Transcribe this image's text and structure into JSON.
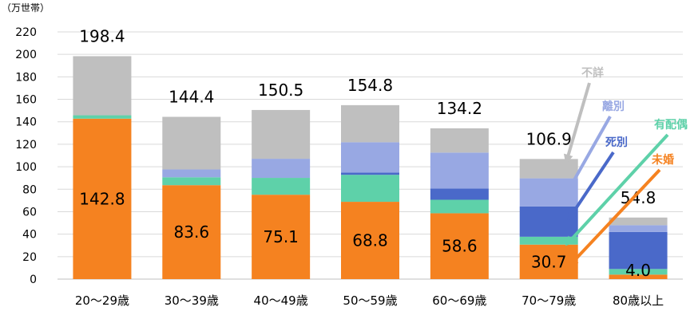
{
  "chart_data": {
    "type": "bar",
    "stacked": true,
    "unit_label": "（万世帯）",
    "categories": [
      "20～29歳",
      "30～39歳",
      "40～49歳",
      "50～59歳",
      "60～69歳",
      "70～79歳",
      "80歳以上"
    ],
    "ylim": [
      0,
      220
    ],
    "yticks": [
      0,
      20,
      40,
      60,
      80,
      100,
      120,
      140,
      160,
      180,
      200,
      220
    ],
    "grid": true,
    "series": [
      {
        "name": "未婚",
        "color": "#F58220",
        "values": [
          142.8,
          83.6,
          75.1,
          68.8,
          58.6,
          30.7,
          4.0
        ]
      },
      {
        "name": "有配偶",
        "color": "#5ED1A9",
        "values": [
          3.0,
          7.0,
          15.0,
          24.0,
          12.0,
          7.0,
          5.0
        ]
      },
      {
        "name": "死別",
        "color": "#4A69C9",
        "values": [
          0.0,
          0.0,
          0.0,
          2.0,
          10.0,
          27.0,
          33.0
        ]
      },
      {
        "name": "離別",
        "color": "#98A8E3",
        "values": [
          0.0,
          7.0,
          17.0,
          27.0,
          32.0,
          25.0,
          6.0
        ]
      },
      {
        "name": "不詳",
        "color": "#BFBFBF",
        "values": [
          52.6,
          46.8,
          43.4,
          33.0,
          21.6,
          17.2,
          6.8
        ]
      }
    ],
    "totals": [
      "198.4",
      "144.4",
      "150.5",
      "154.8",
      "134.2",
      "106.9",
      "54.8"
    ],
    "inner_labels": [
      "142.8",
      "83.6",
      "75.1",
      "68.8",
      "58.6",
      "30.7",
      "4.0"
    ],
    "annotation_order": [
      "不詳",
      "離別",
      "死別",
      "有配偶",
      "未婚"
    ]
  }
}
